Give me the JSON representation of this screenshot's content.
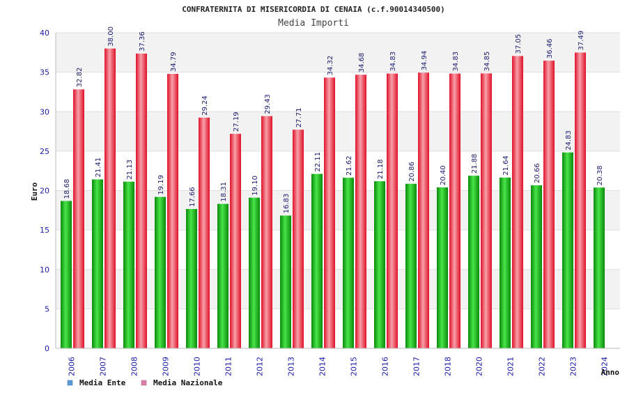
{
  "chart_data": {
    "type": "bar",
    "title": "CONFRATERNITA DI MISERICORDIA DI CENAIA (c.f.90014340500)",
    "subtitle": "Media Importi",
    "ylabel": "Euro",
    "xlabel": "Anno",
    "ylim": [
      0,
      40
    ],
    "yticks": [
      0,
      5,
      10,
      15,
      20,
      25,
      30,
      35,
      40
    ],
    "grid": true,
    "categories": [
      "2006",
      "2007",
      "2008",
      "2009",
      "2010",
      "2011",
      "2012",
      "2013",
      "2014",
      "2015",
      "2016",
      "2017",
      "2018",
      "2020",
      "2021",
      "2022",
      "2023",
      "2024"
    ],
    "series": [
      {
        "name": "Media Ente",
        "values": [
          18.68,
          21.41,
          21.13,
          19.19,
          17.66,
          18.31,
          19.1,
          16.83,
          22.11,
          21.62,
          21.18,
          20.86,
          20.4,
          21.88,
          21.64,
          20.66,
          24.83,
          20.38
        ],
        "labels": [
          "18.68",
          "21.41",
          "21.13",
          "19.19",
          "17.66",
          "18.31",
          "19.10",
          "16.83",
          "22.11",
          "21.62",
          "21.18",
          "20.86",
          "20.40",
          "21.88",
          "21.64",
          "20.66",
          "24.83",
          "20.38"
        ]
      },
      {
        "name": "Media Nazionale",
        "values": [
          32.82,
          38.0,
          37.36,
          34.79,
          29.24,
          27.19,
          29.43,
          27.71,
          34.32,
          34.68,
          34.83,
          34.94,
          34.83,
          34.85,
          37.05,
          36.46,
          37.49,
          null
        ],
        "labels": [
          "32.82",
          "38.00",
          "37.36",
          "34.79",
          "29.24",
          "27.19",
          "29.43",
          "27.71",
          "34.32",
          "34.68",
          "34.83",
          "34.94",
          "34.83",
          "34.85",
          "37.05",
          "36.46",
          "37.49",
          null
        ]
      }
    ],
    "legend": {
      "position": "bottom-left",
      "items": [
        {
          "label": "Media Ente",
          "color": "#5b9bd5"
        },
        {
          "label": "Media Nazionale",
          "color": "#d77fa8"
        }
      ]
    },
    "colors": {
      "ente_dark": "#0a8a0a",
      "ente_light": "#49e449",
      "naz_dark": "#e0102a",
      "naz_light": "#f7a0a8",
      "grid_band": "#f2f2f2",
      "grid_line": "#dddddd"
    }
  }
}
